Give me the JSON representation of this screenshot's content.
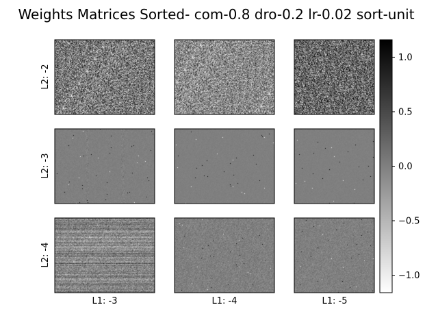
{
  "chart_data": {
    "type": "heatmap",
    "title": "Weights Matrices Sorted- com-0.8 dro-0.2 lr-0.02 sort-unit",
    "row_labels": [
      "L2: -2",
      "L2: -3",
      "L2: -4"
    ],
    "col_labels": [
      "L1: -3",
      "L1: -4",
      "L1: -5"
    ],
    "colormap": "gray_r",
    "colorbar": {
      "vmin": -1.16,
      "vmax": 1.16,
      "ticks": [
        1.0,
        0.5,
        0.0,
        -0.5,
        -1.0
      ],
      "tick_labels": [
        "1.0",
        "0.5",
        "0.0",
        "−0.5",
        "−1.0"
      ]
    },
    "panels": [
      {
        "row": 0,
        "col": 0,
        "pattern": "dense_noise",
        "mean": 0.05,
        "spread": 0.48
      },
      {
        "row": 0,
        "col": 1,
        "pattern": "dense_noise",
        "mean": -0.1,
        "spread": 0.42
      },
      {
        "row": 0,
        "col": 2,
        "pattern": "dense_noise",
        "mean": 0.22,
        "spread": 0.5
      },
      {
        "row": 1,
        "col": 0,
        "pattern": "sparse_columns",
        "mean": 0.0,
        "spread": 0.03
      },
      {
        "row": 1,
        "col": 1,
        "pattern": "sparse",
        "mean": 0.0,
        "spread": 0.02
      },
      {
        "row": 1,
        "col": 2,
        "pattern": "sparse",
        "mean": 0.0,
        "spread": 0.02
      },
      {
        "row": 2,
        "col": 0,
        "pattern": "row_noise",
        "mean": -0.05,
        "spread": 0.2
      },
      {
        "row": 2,
        "col": 1,
        "pattern": "light_noise",
        "mean": 0.0,
        "spread": 0.09
      },
      {
        "row": 2,
        "col": 2,
        "pattern": "light_noise",
        "mean": 0.0,
        "spread": 0.08
      }
    ]
  }
}
